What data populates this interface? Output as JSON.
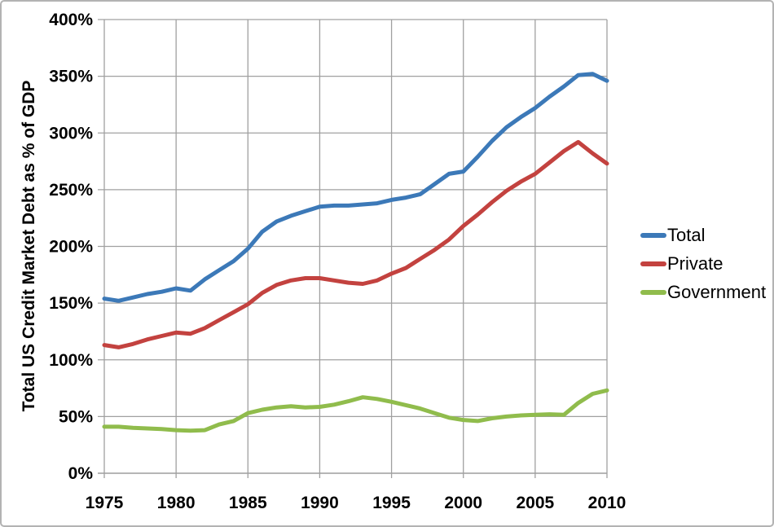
{
  "chart_data": {
    "type": "line",
    "title": "",
    "xlabel": "",
    "ylabel": "Total US Credit Market Debt as % of GDP",
    "xlim": [
      1975,
      2010
    ],
    "ylim": [
      0,
      400
    ],
    "grid": true,
    "legend_position": "right",
    "x_ticks": [
      1975,
      1980,
      1985,
      1990,
      1995,
      2000,
      2005,
      2010
    ],
    "x_tick_labels": [
      "1975",
      "1980",
      "1985",
      "1990",
      "1995",
      "2000",
      "2005",
      "2010"
    ],
    "y_ticks": [
      0,
      50,
      100,
      150,
      200,
      250,
      300,
      350,
      400
    ],
    "y_tick_labels": [
      "0%",
      "50%",
      "100%",
      "150%",
      "200%",
      "250%",
      "300%",
      "350%",
      "400%"
    ],
    "x": [
      1975,
      1976,
      1977,
      1978,
      1979,
      1980,
      1981,
      1982,
      1983,
      1984,
      1985,
      1986,
      1987,
      1988,
      1989,
      1990,
      1991,
      1992,
      1993,
      1994,
      1995,
      1996,
      1997,
      1998,
      1999,
      2000,
      2001,
      2002,
      2003,
      2004,
      2005,
      2006,
      2007,
      2008,
      2009,
      2010
    ],
    "series": [
      {
        "name": "Total",
        "color": "#3C79B8",
        "values": [
          154,
          152,
          155,
          158,
          160,
          163,
          161,
          171,
          179,
          187,
          198,
          213,
          222,
          227,
          231,
          235,
          236,
          236,
          237,
          238,
          241,
          243,
          246,
          255,
          264,
          266,
          279,
          293,
          305,
          314,
          322,
          332,
          341,
          351,
          352,
          346
        ]
      },
      {
        "name": "Private",
        "color": "#C3423F",
        "values": [
          113,
          111,
          114,
          118,
          121,
          124,
          123,
          128,
          135,
          142,
          149,
          159,
          166,
          170,
          172,
          172,
          170,
          168,
          167,
          170,
          176,
          181,
          189,
          197,
          206,
          218,
          228,
          239,
          249,
          257,
          264,
          274,
          284,
          292,
          282,
          273
        ]
      },
      {
        "name": "Government",
        "color": "#90BC4C",
        "values": [
          41,
          41,
          40,
          39.5,
          39,
          38,
          37.5,
          38,
          43,
          46,
          53,
          56,
          58,
          59,
          58,
          58.5,
          60.5,
          63.5,
          67,
          65.5,
          63,
          60,
          57,
          53,
          49,
          47,
          46,
          48.5,
          50,
          51,
          51.5,
          52,
          51.5,
          62,
          70,
          73
        ]
      }
    ],
    "colors": {
      "grid": "#A0A0A0",
      "axis": "#8A8A8A",
      "text": "#000000",
      "background": "#FFFFFF"
    }
  }
}
